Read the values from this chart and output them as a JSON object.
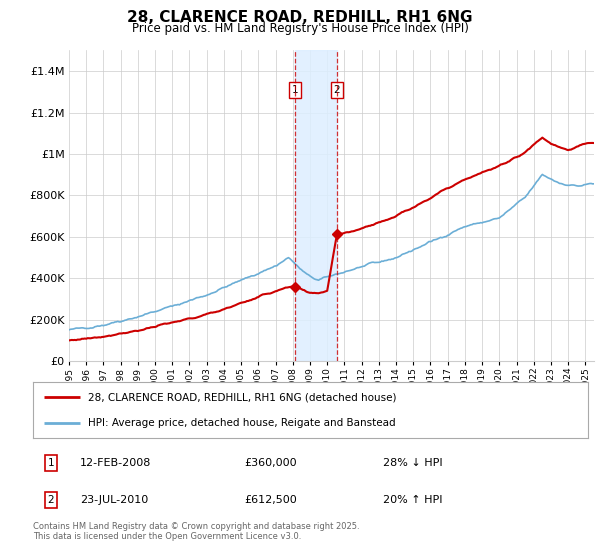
{
  "title": "28, CLARENCE ROAD, REDHILL, RH1 6NG",
  "subtitle": "Price paid vs. HM Land Registry's House Price Index (HPI)",
  "legend_house": "28, CLARENCE ROAD, REDHILL, RH1 6NG (detached house)",
  "legend_hpi": "HPI: Average price, detached house, Reigate and Banstead",
  "transaction1_date": "12-FEB-2008",
  "transaction1_price": "£360,000",
  "transaction1_hpi_text": "28% ↓ HPI",
  "transaction2_date": "23-JUL-2010",
  "transaction2_price": "£612,500",
  "transaction2_hpi_text": "20% ↑ HPI",
  "footnote": "Contains HM Land Registry data © Crown copyright and database right 2025.\nThis data is licensed under the Open Government Licence v3.0.",
  "house_color": "#cc0000",
  "hpi_color": "#6baed6",
  "t1": 2008.12,
  "t2": 2010.56,
  "p1": 360000,
  "p2": 612500,
  "ylim": [
    0,
    1500000
  ],
  "yticks": [
    0,
    200000,
    400000,
    600000,
    800000,
    1000000,
    1200000,
    1400000
  ],
  "xlim_start": 1995.0,
  "xlim_end": 2025.5,
  "bg_color": "#ffffff",
  "grid_color": "#cccccc",
  "span_color": "#ddeeff",
  "hpi_anchors_x": [
    1995.0,
    1997.0,
    1999.0,
    2001.0,
    2003.0,
    2005.0,
    2007.0,
    2007.75,
    2008.75,
    2009.5,
    2010.5,
    2012.0,
    2014.0,
    2016.0,
    2018.0,
    2020.0,
    2021.5,
    2022.5,
    2023.5,
    2024.5,
    2025.3
  ],
  "hpi_anchors_y": [
    150000,
    175000,
    215000,
    265000,
    320000,
    390000,
    460000,
    500000,
    420000,
    390000,
    420000,
    455000,
    500000,
    575000,
    650000,
    690000,
    790000,
    900000,
    860000,
    845000,
    855000
  ],
  "house_anchors_x": [
    1995.0,
    1997.0,
    1999.0,
    2001.0,
    2003.0,
    2005.0,
    2007.0,
    2008.12,
    2008.5,
    2009.0,
    2009.5,
    2010.0,
    2010.56,
    2012.0,
    2014.0,
    2016.0,
    2018.0,
    2020.0,
    2021.5,
    2022.5,
    2023.0,
    2024.0,
    2025.3
  ],
  "house_anchors_y": [
    100000,
    120000,
    148000,
    185000,
    225000,
    280000,
    340000,
    360000,
    345000,
    325000,
    330000,
    340000,
    612500,
    640000,
    700000,
    790000,
    880000,
    940000,
    1010000,
    1080000,
    1050000,
    1020000,
    1055000
  ]
}
